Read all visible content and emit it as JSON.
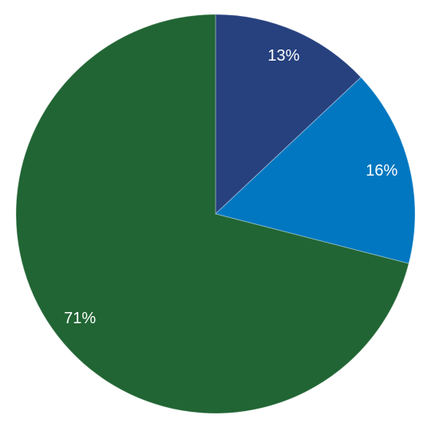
{
  "chart_data": {
    "type": "pie",
    "values": [
      13,
      16,
      71
    ],
    "value_labels": [
      "13%",
      "16%",
      "71%"
    ],
    "colors": [
      "#27417f",
      "#0077c0",
      "#216534"
    ]
  }
}
